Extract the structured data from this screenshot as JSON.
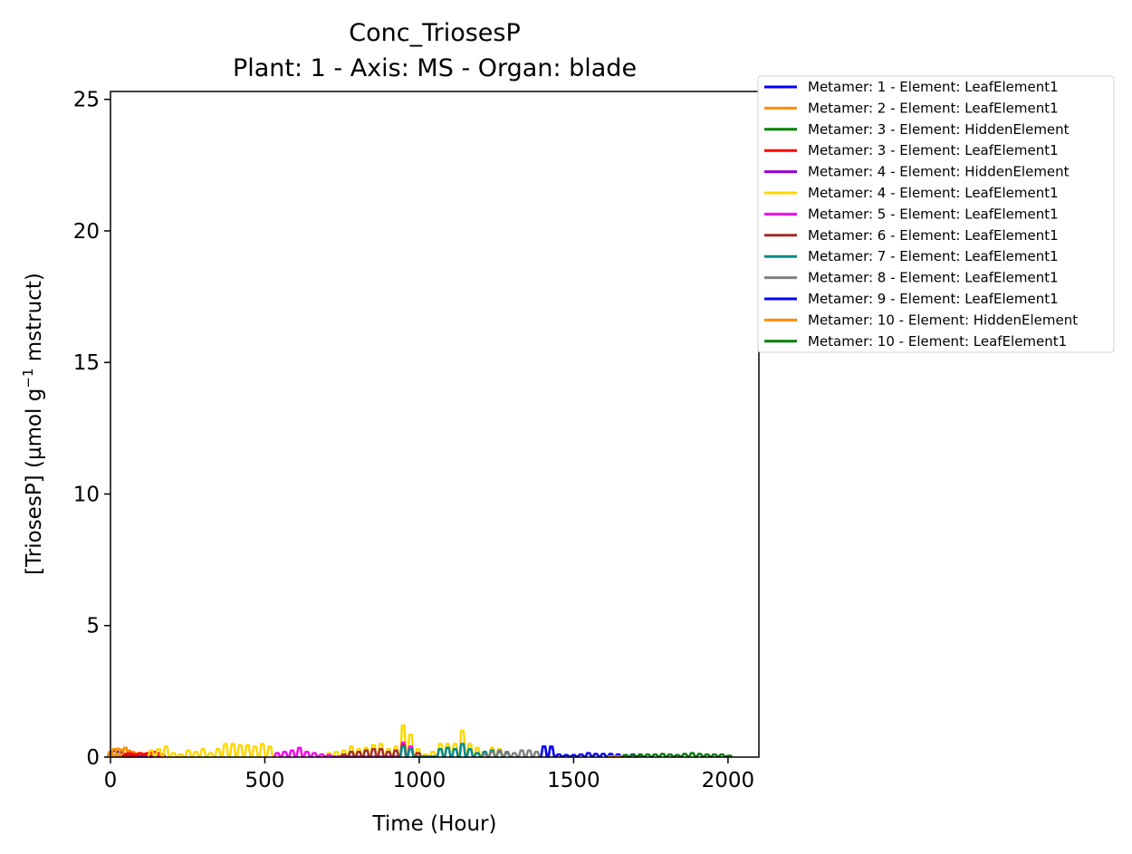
{
  "chart_data": {
    "type": "line",
    "title": "Conc_TriosesP",
    "subtitle": "Plant: 1 - Axis: MS - Organ: blade",
    "xlabel": "Time (Hour)",
    "ylabel_main": "[TriosesP] (µmol g",
    "ylabel_sup": "−1",
    "ylabel_tail": " mstruct)",
    "xlim": [
      0,
      2100
    ],
    "ylim": [
      0,
      25.3
    ],
    "xticks": [
      0,
      500,
      1000,
      1500,
      2000
    ],
    "yticks": [
      0,
      5,
      10,
      15,
      20,
      25
    ],
    "grid": false,
    "legend_position": "outside-top-right",
    "series": [
      {
        "name": "Metamer: 1 - Element: LeafElement1",
        "color": "#0000ff",
        "x": [
          0,
          12,
          24,
          36,
          48,
          60
        ],
        "peak": [
          0.15,
          0.25,
          0.2,
          0.18,
          0.12,
          0.08
        ]
      },
      {
        "name": "Metamer: 2 - Element: LeafElement1",
        "color": "#ff8c00",
        "x": [
          0,
          12,
          24,
          36,
          48,
          60,
          72,
          84,
          96,
          108,
          120,
          132,
          144
        ],
        "peak": [
          0.2,
          0.3,
          0.32,
          0.28,
          0.35,
          0.25,
          0.2,
          0.15,
          0.12,
          0.1,
          0.1,
          0.08,
          0.06
        ]
      },
      {
        "name": "Metamer: 3 - Element: HiddenElement",
        "color": "#008000",
        "x": [
          48,
          60,
          72
        ],
        "peak": [
          0.03,
          0.03,
          0.03
        ]
      },
      {
        "name": "Metamer: 3 - Element: LeafElement1",
        "color": "#ff0000",
        "x": [
          48,
          60,
          72,
          84,
          96,
          108,
          120,
          132,
          144,
          156,
          168
        ],
        "peak": [
          0.1,
          0.15,
          0.12,
          0.1,
          0.15,
          0.12,
          0.15,
          0.18,
          0.2,
          0.15,
          0.1
        ]
      },
      {
        "name": "Metamer: 4 - Element: HiddenElement",
        "color": "#9400d3",
        "x": [
          96,
          108,
          120,
          132
        ],
        "peak": [
          0.03,
          0.03,
          0.03,
          0.03
        ]
      },
      {
        "name": "Metamer: 4 - Element: LeafElement1",
        "color": "#ffd700",
        "x": [
          132,
          156,
          180,
          204,
          228,
          252,
          276,
          300,
          324,
          348,
          372,
          396,
          420,
          444,
          468,
          492,
          516,
          540,
          564,
          588,
          612,
          636,
          660,
          684,
          708,
          732,
          756,
          780,
          804,
          828,
          852,
          876,
          900,
          924,
          948,
          972,
          996,
          1020,
          1044,
          1068,
          1092,
          1116,
          1140,
          1164,
          1188,
          1212,
          1236,
          1260,
          1284
        ],
        "peak": [
          0.25,
          0.3,
          0.4,
          0.15,
          0.1,
          0.25,
          0.2,
          0.3,
          0.15,
          0.3,
          0.5,
          0.5,
          0.45,
          0.45,
          0.4,
          0.5,
          0.4,
          0.15,
          0.2,
          0.25,
          0.35,
          0.2,
          0.15,
          0.1,
          0.15,
          0.2,
          0.25,
          0.4,
          0.3,
          0.35,
          0.45,
          0.5,
          0.3,
          0.4,
          1.2,
          0.85,
          0.3,
          0.1,
          0.2,
          0.5,
          0.5,
          0.5,
          1.0,
          0.5,
          0.35,
          0.2,
          0.35,
          0.3,
          0.2
        ]
      },
      {
        "name": "Metamer: 5 - Element: LeafElement1",
        "color": "#ff00ff",
        "x": [
          540,
          564,
          588,
          612,
          636,
          660,
          684,
          708,
          948,
          972
        ],
        "peak": [
          0.15,
          0.2,
          0.25,
          0.35,
          0.2,
          0.15,
          0.1,
          0.08,
          0.55,
          0.4
        ]
      },
      {
        "name": "Metamer: 6 - Element: LeafElement1",
        "color": "#a52a2a",
        "x": [
          756,
          780,
          804,
          828,
          852,
          876,
          900,
          924,
          948,
          972,
          996
        ],
        "peak": [
          0.1,
          0.2,
          0.2,
          0.25,
          0.3,
          0.3,
          0.2,
          0.25,
          0.45,
          0.3,
          0.15
        ]
      },
      {
        "name": "Metamer: 7 - Element: LeafElement1",
        "color": "#008b8b",
        "x": [
          948,
          972,
          1068,
          1092,
          1116,
          1140,
          1164,
          1188,
          1212,
          1236,
          1260,
          1284
        ],
        "peak": [
          0.4,
          0.3,
          0.3,
          0.35,
          0.3,
          0.5,
          0.3,
          0.15,
          0.2,
          0.25,
          0.2,
          0.15
        ]
      },
      {
        "name": "Metamer: 8 - Element: LeafElement1",
        "color": "#808080",
        "x": [
          1212,
          1236,
          1260,
          1284,
          1308,
          1332,
          1356,
          1380,
          1404,
          1428,
          1452
        ],
        "peak": [
          0.1,
          0.2,
          0.25,
          0.2,
          0.15,
          0.25,
          0.25,
          0.2,
          0.4,
          0.35,
          0.1
        ]
      },
      {
        "name": "Metamer: 9 - Element: LeafElement1",
        "color": "#0000ff",
        "x": [
          1404,
          1428,
          1452,
          1476,
          1500,
          1524,
          1548,
          1572,
          1596,
          1620,
          1644,
          1668,
          1692,
          1716
        ],
        "peak": [
          0.4,
          0.4,
          0.1,
          0.08,
          0.08,
          0.1,
          0.15,
          0.12,
          0.12,
          0.12,
          0.1,
          0.08,
          0.1,
          0.08
        ]
      },
      {
        "name": "Metamer: 10 - Element: HiddenElement",
        "color": "#ff8c00",
        "x": [
          1620,
          1644,
          1668
        ],
        "peak": [
          0.03,
          0.03,
          0.03
        ]
      },
      {
        "name": "Metamer: 10 - Element: LeafElement1",
        "color": "#008000",
        "x": [
          1668,
          1692,
          1716,
          1740,
          1764,
          1788,
          1812,
          1836,
          1860,
          1884,
          1908,
          1932,
          1956,
          1980,
          2004
        ],
        "peak": [
          0.08,
          0.08,
          0.1,
          0.1,
          0.1,
          0.12,
          0.1,
          0.08,
          0.12,
          0.15,
          0.12,
          0.1,
          0.1,
          0.1,
          0.05
        ]
      }
    ]
  }
}
